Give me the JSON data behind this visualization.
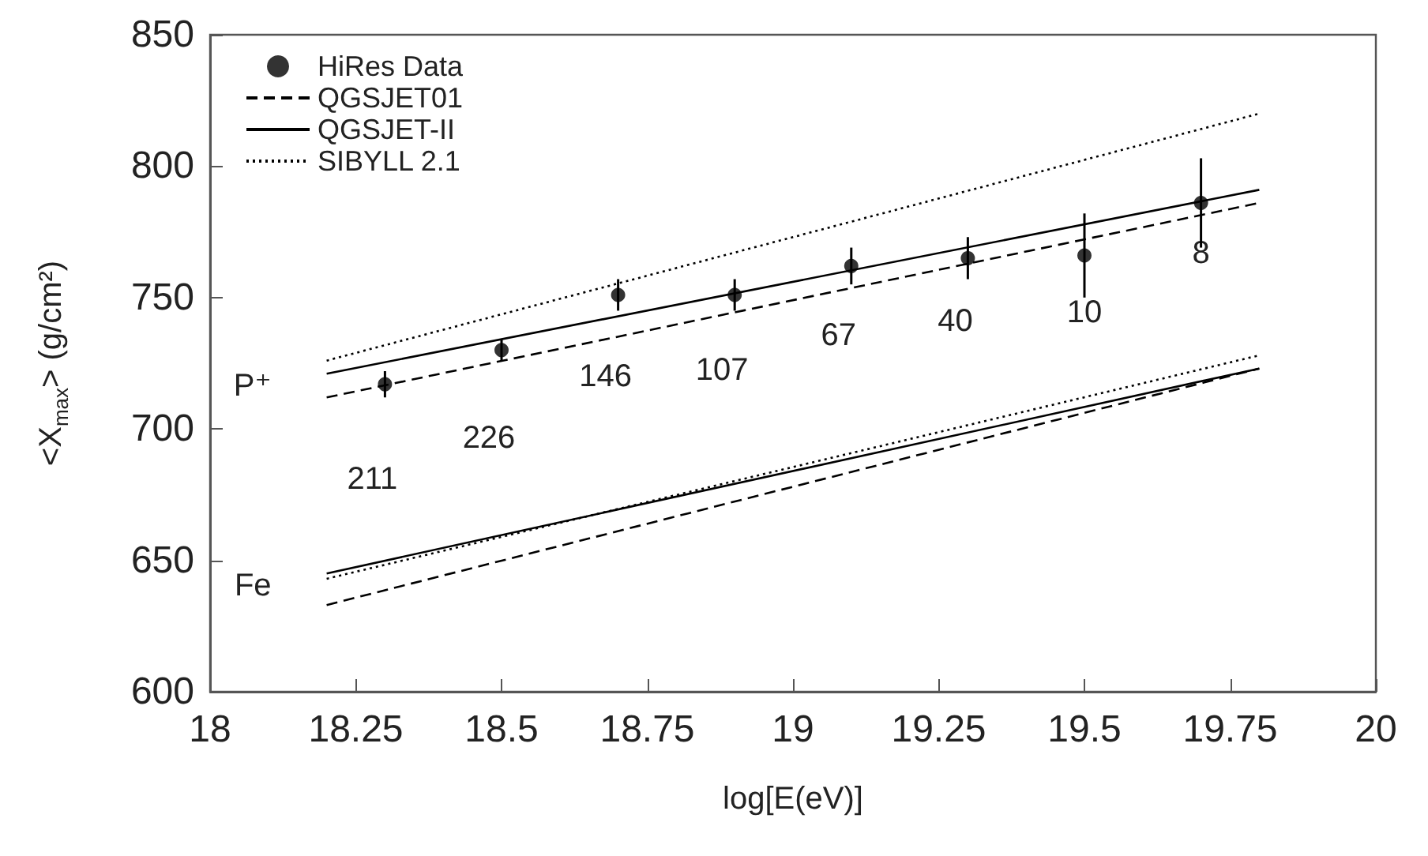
{
  "chart_data": {
    "type": "scatter",
    "xlabel": "log[E(eV)]",
    "ylabel": "<X$_{max}$> (g/cm²)",
    "xlim": [
      18,
      20
    ],
    "xticks": [
      18,
      18.25,
      18.5,
      18.75,
      19,
      19.25,
      19.5,
      19.75,
      20
    ],
    "ylim": [
      600,
      850
    ],
    "yticks": [
      600,
      650,
      700,
      750,
      800,
      850
    ],
    "grid": false,
    "legend": "top left",
    "series": [
      {
        "name": "HiRes Data",
        "marker": "circle",
        "color": "#000000",
        "x": [
          18.3,
          18.5,
          18.7,
          18.9,
          19.1,
          19.3,
          19.5,
          19.7
        ],
        "values": [
          717,
          730,
          751,
          751,
          762,
          765,
          766,
          786
        ],
        "errors": [
          5,
          4,
          6,
          6,
          7,
          8,
          16,
          17
        ]
      },
      {
        "name": "QGSJET01",
        "type": "line",
        "line_style": "dashed",
        "marker": "none",
        "color": "#000000",
        "x": [
          18.2,
          19.8
        ],
        "values": [
          712,
          786
        ]
      },
      {
        "name": "QGSJET-II",
        "type": "line",
        "line_style": "solid",
        "marker": "none",
        "color": "#000000",
        "x": [
          18.2,
          19.8
        ],
        "values": [
          721,
          791
        ]
      },
      {
        "name": "SIBYLL 2.1",
        "type": "line",
        "line_style": "dotted",
        "marker": "none",
        "color": "#000000",
        "x": [
          18.2,
          19.8
        ],
        "values": [
          726,
          820
        ]
      },
      {
        "type": "line",
        "line_style": "dashed",
        "marker": "none",
        "color": "#000000",
        "x": [
          18.2,
          19.8
        ],
        "values": [
          633,
          723
        ]
      },
      {
        "type": "line",
        "line_style": "solid",
        "marker": "none",
        "color": "#000000",
        "x": [
          18.2,
          19.8
        ],
        "values": [
          645,
          723
        ]
      },
      {
        "type": "line",
        "line_style": "dotted",
        "marker": "none",
        "color": "#000000",
        "x": [
          18.2,
          19.8
        ],
        "values": [
          643,
          728
        ]
      }
    ],
    "annotations": [
      "P⁺",
      "Fe",
      "211",
      "226",
      "146",
      "107",
      "67",
      "40",
      "10",
      "8"
    ]
  }
}
